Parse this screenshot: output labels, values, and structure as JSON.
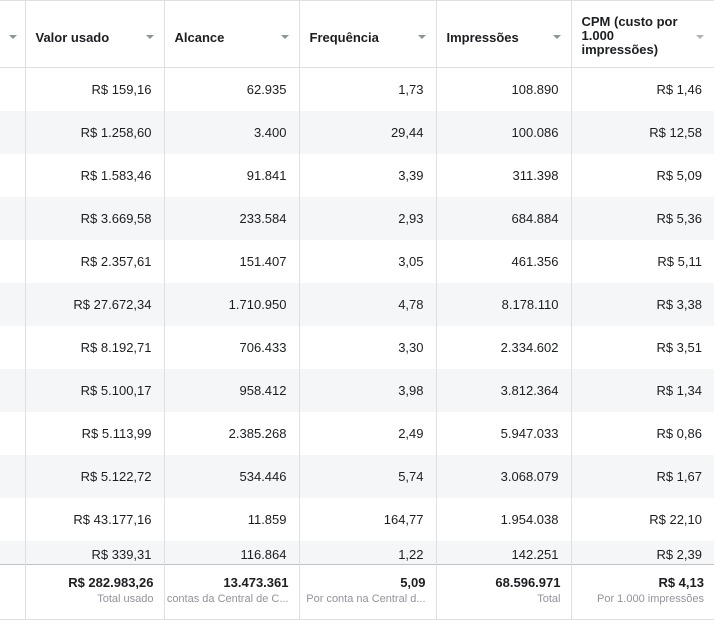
{
  "columns": [
    {
      "label": ""
    },
    {
      "label": "Valor usado"
    },
    {
      "label": "Alcance"
    },
    {
      "label": "Frequência"
    },
    {
      "label": "Impressões"
    },
    {
      "label": "CPM (custo por 1.000 impressões)"
    }
  ],
  "rows": [
    {
      "valor": "R$ 159,16",
      "alcance": "62.935",
      "frequencia": "1,73",
      "impressoes": "108.890",
      "cpm": "R$ 1,46"
    },
    {
      "valor": "R$ 1.258,60",
      "alcance": "3.400",
      "frequencia": "29,44",
      "impressoes": "100.086",
      "cpm": "R$ 12,58"
    },
    {
      "valor": "R$ 1.583,46",
      "alcance": "91.841",
      "frequencia": "3,39",
      "impressoes": "311.398",
      "cpm": "R$ 5,09"
    },
    {
      "valor": "R$ 3.669,58",
      "alcance": "233.584",
      "frequencia": "2,93",
      "impressoes": "684.884",
      "cpm": "R$ 5,36"
    },
    {
      "valor": "R$ 2.357,61",
      "alcance": "151.407",
      "frequencia": "3,05",
      "impressoes": "461.356",
      "cpm": "R$ 5,11"
    },
    {
      "valor": "R$ 27.672,34",
      "alcance": "1.710.950",
      "frequencia": "4,78",
      "impressoes": "8.178.110",
      "cpm": "R$ 3,38"
    },
    {
      "valor": "R$ 8.192,71",
      "alcance": "706.433",
      "frequencia": "3,30",
      "impressoes": "2.334.602",
      "cpm": "R$ 3,51"
    },
    {
      "valor": "R$ 5.100,17",
      "alcance": "958.412",
      "frequencia": "3,98",
      "impressoes": "3.812.364",
      "cpm": "R$ 1,34"
    },
    {
      "valor": "R$ 5.113,99",
      "alcance": "2.385.268",
      "frequencia": "2,49",
      "impressoes": "5.947.033",
      "cpm": "R$ 0,86"
    },
    {
      "valor": "R$ 5.122,72",
      "alcance": "534.446",
      "frequencia": "5,74",
      "impressoes": "3.068.079",
      "cpm": "R$ 1,67"
    },
    {
      "valor": "R$ 43.177,16",
      "alcance": "11.859",
      "frequencia": "164,77",
      "impressoes": "1.954.038",
      "cpm": "R$ 22,10"
    },
    {
      "valor": "R$ 339,31",
      "alcance": "116.864",
      "frequencia": "1,22",
      "impressoes": "142.251",
      "cpm": "R$ 2,39"
    }
  ],
  "totals": {
    "valor": {
      "value": "R$ 282.983,26",
      "caption": "Total usado"
    },
    "alcance": {
      "value": "13.473.361",
      "caption": "contas da Central de C..."
    },
    "frequencia": {
      "value": "5,09",
      "caption": "Por conta na Central d..."
    },
    "impressoes": {
      "value": "68.596.971",
      "caption": "Total"
    },
    "cpm": {
      "value": "R$ 4,13",
      "caption": "Por 1.000 impressões"
    }
  },
  "icons": {
    "sort": "chevron-down-icon"
  },
  "colors": {
    "border": "#dddfe2",
    "stripe": "#f5f6f7",
    "caption": "#90949c",
    "text": "#1c1e21"
  }
}
